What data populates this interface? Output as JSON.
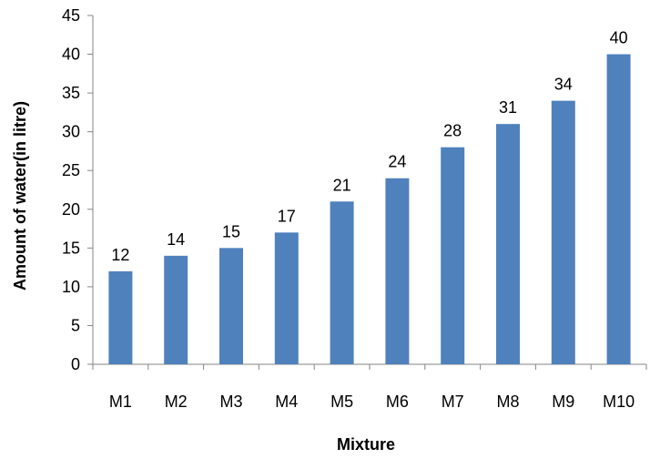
{
  "chart_data": {
    "type": "bar",
    "title": "",
    "xlabel": "Mixture",
    "ylabel": "Amount of water(in litre)",
    "categories": [
      "M1",
      "M2",
      "M3",
      "M4",
      "M5",
      "M6",
      "M7",
      "M8",
      "M9",
      "M10"
    ],
    "values": [
      12,
      14,
      15,
      17,
      21,
      24,
      28,
      31,
      34,
      40
    ],
    "ylim": [
      0,
      45
    ],
    "yticks": [
      0,
      5,
      10,
      15,
      20,
      25,
      30,
      35,
      40,
      45
    ],
    "grid": false,
    "legend": "none",
    "bar_color": "#4F81BD",
    "show_data_labels": true
  }
}
